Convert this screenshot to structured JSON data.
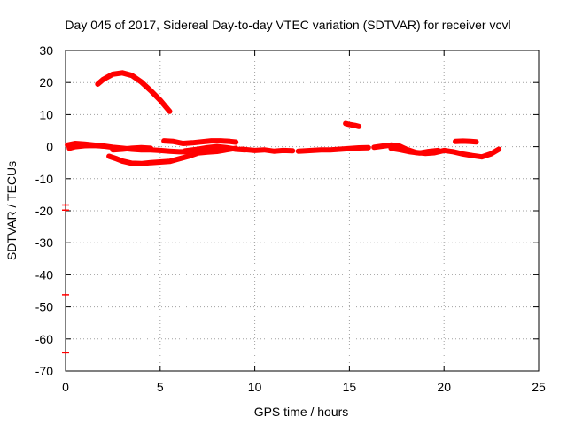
{
  "chart_data": {
    "type": "scatter",
    "title": "Day 045 of 2017, Sidereal Day-to-day VTEC variation (SDTVAR) for receiver vcvl",
    "xlabel": "GPS time / hours",
    "ylabel": "SDTVAR / TECUs",
    "xlim": [
      0,
      25
    ],
    "ylim": [
      -70,
      30
    ],
    "xticks": [
      0,
      5,
      10,
      15,
      20,
      25
    ],
    "yticks": [
      -70,
      -60,
      -50,
      -40,
      -30,
      -20,
      -10,
      0,
      10,
      20,
      30
    ],
    "grid": true,
    "series": [
      {
        "name": "SDTVAR",
        "color": "#ff0000",
        "segments": [
          [
            [
              1.7,
              19.5
            ],
            [
              2.0,
              21.0
            ],
            [
              2.5,
              22.6
            ],
            [
              3.0,
              23.0
            ],
            [
              3.5,
              22.2
            ],
            [
              4.0,
              20.2
            ],
            [
              4.5,
              17.5
            ],
            [
              5.0,
              14.5
            ],
            [
              5.5,
              11.0
            ]
          ],
          [
            [
              0.1,
              0.5
            ],
            [
              0.5,
              1.0
            ],
            [
              1.0,
              0.8
            ],
            [
              1.5,
              0.5
            ],
            [
              2.0,
              0.2
            ],
            [
              2.5,
              -0.2
            ],
            [
              3.0,
              -0.5
            ],
            [
              3.5,
              -0.8
            ],
            [
              4.0,
              -1.0
            ],
            [
              4.5,
              -1.0
            ],
            [
              5.0,
              -1.2
            ],
            [
              5.5,
              -1.4
            ],
            [
              6.0,
              -1.6
            ],
            [
              6.5,
              -1.6
            ]
          ],
          [
            [
              0.2,
              -0.5
            ],
            [
              0.5,
              0.0
            ],
            [
              1.0,
              0.3
            ],
            [
              1.5,
              0.4
            ],
            [
              2.0,
              0.2
            ]
          ],
          [
            [
              2.3,
              -3.0
            ],
            [
              2.7,
              -3.8
            ],
            [
              3.0,
              -4.5
            ],
            [
              3.5,
              -5.2
            ],
            [
              4.0,
              -5.3
            ],
            [
              4.5,
              -5.0
            ],
            [
              5.0,
              -4.8
            ],
            [
              5.5,
              -4.6
            ],
            [
              6.0,
              -3.8
            ],
            [
              6.5,
              -3.0
            ],
            [
              7.0,
              -2.0
            ],
            [
              7.5,
              -1.7
            ],
            [
              8.0,
              -1.5
            ],
            [
              8.5,
              -1.0
            ],
            [
              9.0,
              -0.5
            ]
          ],
          [
            [
              2.5,
              -1.0
            ],
            [
              3.0,
              -0.8
            ],
            [
              3.5,
              -0.5
            ],
            [
              4.0,
              -0.3
            ],
            [
              4.5,
              -0.5
            ]
          ],
          [
            [
              5.2,
              1.8
            ],
            [
              5.7,
              1.6
            ],
            [
              6.2,
              1.0
            ],
            [
              6.7,
              1.2
            ],
            [
              7.2,
              1.5
            ],
            [
              7.7,
              1.8
            ],
            [
              8.2,
              1.8
            ],
            [
              8.7,
              1.6
            ],
            [
              9.0,
              1.4
            ]
          ],
          [
            [
              6.3,
              -1.3
            ],
            [
              7.0,
              -0.8
            ],
            [
              7.5,
              -0.3
            ],
            [
              8.0,
              0.0
            ],
            [
              8.5,
              -0.3
            ],
            [
              9.0,
              -0.8
            ],
            [
              9.5,
              -1.0
            ]
          ],
          [
            [
              9.3,
              -0.8
            ],
            [
              10.0,
              -1.2
            ],
            [
              10.5,
              -1.0
            ],
            [
              11.0,
              -1.4
            ],
            [
              11.5,
              -1.2
            ],
            [
              12.0,
              -1.3
            ]
          ],
          [
            [
              12.3,
              -1.4
            ],
            [
              13.0,
              -1.2
            ],
            [
              13.5,
              -1.0
            ],
            [
              14.0,
              -1.0
            ],
            [
              14.5,
              -0.8
            ],
            [
              15.0,
              -0.6
            ],
            [
              15.5,
              -0.4
            ],
            [
              16.0,
              -0.3
            ]
          ],
          [
            [
              16.3,
              -0.2
            ],
            [
              16.8,
              0.2
            ],
            [
              17.2,
              0.5
            ],
            [
              17.6,
              0.3
            ],
            [
              18.0,
              -0.8
            ],
            [
              18.5,
              -1.8
            ],
            [
              19.0,
              -2.1
            ],
            [
              19.5,
              -1.9
            ],
            [
              20.0,
              -1.2
            ],
            [
              20.5,
              -1.6
            ],
            [
              21.0,
              -2.3
            ],
            [
              21.5,
              -2.8
            ],
            [
              22.0,
              -3.2
            ],
            [
              22.5,
              -2.2
            ],
            [
              22.9,
              -0.8
            ]
          ],
          [
            [
              17.2,
              -0.5
            ],
            [
              17.7,
              -1.0
            ],
            [
              18.2,
              -1.6
            ],
            [
              18.7,
              -2.0
            ],
            [
              19.2,
              -1.5
            ],
            [
              19.7,
              -1.2
            ]
          ],
          [
            [
              14.8,
              7.2
            ],
            [
              15.0,
              6.9
            ],
            [
              15.3,
              6.6
            ],
            [
              15.5,
              6.3
            ]
          ],
          [
            [
              20.6,
              1.6
            ],
            [
              21.0,
              1.7
            ],
            [
              21.4,
              1.6
            ],
            [
              21.7,
              1.5
            ]
          ]
        ],
        "points": [
          [
            0.0,
            -19.8
          ],
          [
            0.0,
            -18.2
          ],
          [
            0.0,
            -46.2
          ],
          [
            0.0,
            -64.3
          ]
        ]
      }
    ]
  }
}
